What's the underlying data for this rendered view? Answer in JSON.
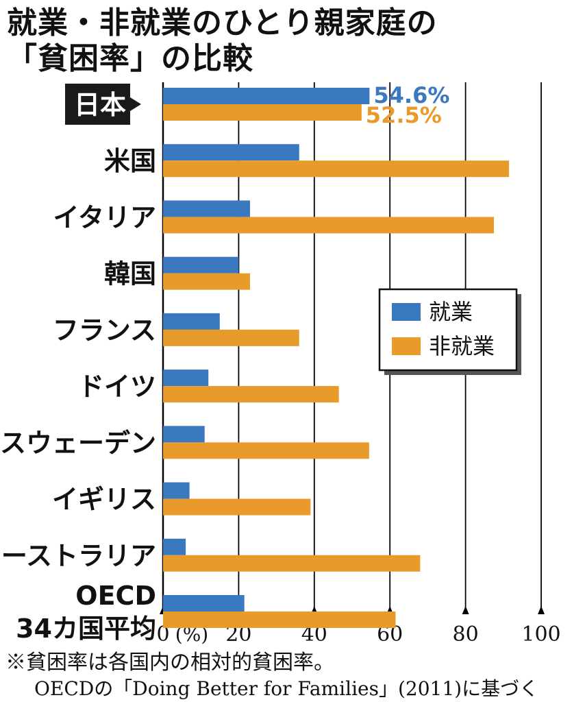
{
  "chart_data": {
    "type": "bar",
    "orientation": "horizontal",
    "title": "就業・非就業のひとり親家庭の",
    "subtitle": "「貧困率」の比較",
    "categories": [
      "日本",
      "米国",
      "イタリア",
      "韓国",
      "フランス",
      "ドイツ",
      "スウェーデン",
      "イギリス",
      "オーストラリア",
      "OECD 34カ国平均"
    ],
    "category_lines": [
      [
        "日本"
      ],
      [
        "米国"
      ],
      [
        "イタリア"
      ],
      [
        "韓国"
      ],
      [
        "フランス"
      ],
      [
        "ドイツ"
      ],
      [
        "スウェーデン"
      ],
      [
        "イギリス"
      ],
      [
        "オーストラリア"
      ],
      [
        "OECD",
        "34カ国平均"
      ]
    ],
    "highlight_category": "日本",
    "series": [
      {
        "name": "就業",
        "color": "#3a78bf",
        "values": [
          54.6,
          36,
          23,
          20,
          15,
          12,
          11,
          7,
          6,
          21.5
        ]
      },
      {
        "name": "非就業",
        "color": "#e89a2a",
        "values": [
          52.5,
          91.5,
          87.5,
          23,
          36,
          46.5,
          54.5,
          39,
          68,
          61.5
        ]
      }
    ],
    "data_labels": {
      "就業": "54.6%",
      "非就業": "52.5%"
    },
    "xlim": [
      0,
      100
    ],
    "x_ticks": [
      "0",
      "20",
      "40",
      "60",
      "80",
      "100"
    ],
    "x_unit": "(%)",
    "grid": true,
    "legend_position": "right-middle"
  },
  "footnote": {
    "line1": "※貧困率は各国内の相対的貧困率。",
    "line2": "OECDの「Doing Better for Families」(2011)に基づく"
  }
}
